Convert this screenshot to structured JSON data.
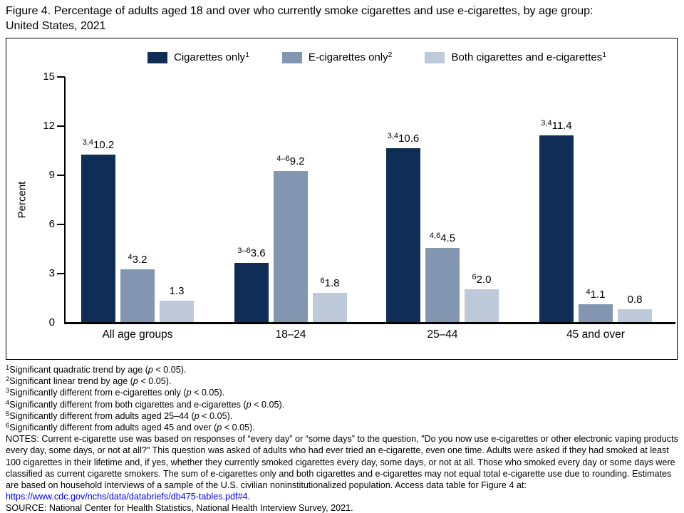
{
  "title_lines": [
    "Figure 4. Percentage of adults aged 18 and over who currently smoke cigarettes and use e-cigarettes, by age group:",
    "United States, 2021"
  ],
  "chart_data": {
    "type": "bar",
    "title": "Figure 4. Percentage of adults aged 18 and over who currently smoke cigarettes and use e-cigarettes, by age group: United States, 2021",
    "categories": [
      "All age groups",
      "18–24",
      "25–44",
      "45 and over"
    ],
    "series": [
      {
        "name": "Cigarettes only",
        "legend_sup": "1",
        "color": "#102e55",
        "values": [
          10.2,
          3.6,
          10.6,
          11.4
        ],
        "labels": [
          "10.2",
          "3.6",
          "10.6",
          "11.4"
        ],
        "sups": [
          "3,4",
          "3–6",
          "3,4",
          "3,4"
        ]
      },
      {
        "name": "E-cigarettes only",
        "legend_sup": "2",
        "color": "#8396b1",
        "values": [
          3.2,
          9.2,
          4.5,
          1.1
        ],
        "labels": [
          "3.2",
          "9.2",
          "4.5",
          "1.1"
        ],
        "sups": [
          "4",
          "4–6",
          "4,6",
          "4"
        ]
      },
      {
        "name": "Both cigarettes and e-cigarettes",
        "legend_sup": "1",
        "color": "#bec9da",
        "values": [
          1.3,
          1.8,
          2.0,
          0.8
        ],
        "labels": [
          "1.3",
          "1.8",
          "2.0",
          "0.8"
        ],
        "sups": [
          "",
          "6",
          "6",
          ""
        ]
      }
    ],
    "xlabel": "",
    "ylabel": "Percent",
    "yticks": [
      0,
      3,
      6,
      9,
      12,
      15
    ],
    "ylim": [
      0,
      15
    ],
    "grid": false,
    "legend_position": "top"
  },
  "p_char": "p",
  "footnotes": [
    {
      "marker": "1",
      "pre": "Significant quadratic trend by age (",
      "post": " < 0.05)."
    },
    {
      "marker": "2",
      "pre": "Significant linear trend by age (",
      "post": " < 0.05)."
    },
    {
      "marker": "3",
      "pre": "Significantly different from e-cigarettes only (",
      "post": " < 0.05)."
    },
    {
      "marker": "4",
      "pre": "Significantly different from both cigarettes and e-cigarettes (",
      "post": " < 0.05)."
    },
    {
      "marker": "5",
      "pre": "Significantly different from adults aged 25–44 (",
      "post": " < 0.05)."
    },
    {
      "marker": "6",
      "pre": "Significantly different from adults aged 45 and over (",
      "post": " < 0.05)."
    }
  ],
  "notes": {
    "pre": "NOTES: Current e-cigarette use was based on responses of “every day” or “some days” to the question, \"Do you now use e-cigarettes or other electronic vaping products every day, some days, or not at all?\" This question was asked of adults who had ever tried an e-cigarette, even one time. Adults were asked if they had smoked at least 100 cigarettes in their lifetime and, if yes, whether they currently smoked cigarettes every day, some days, or not at all. Those who smoked every day or some days were classified as current cigarette smokers. The sum of e-cigarettes only and both cigarettes and e-cigarettes may not equal total e-cigarette use due to rounding. Estimates are based on household interviews of a sample of the U.S. civilian noninstitutionalized population. Access data table for Figure 4 at: ",
    "link": "https://www.cdc.gov/nchs/data/databriefs/db475-tables.pdf#4",
    "post": "."
  },
  "source": "SOURCE: National Center for Health Statistics, National Health Interview Survey, 2021."
}
